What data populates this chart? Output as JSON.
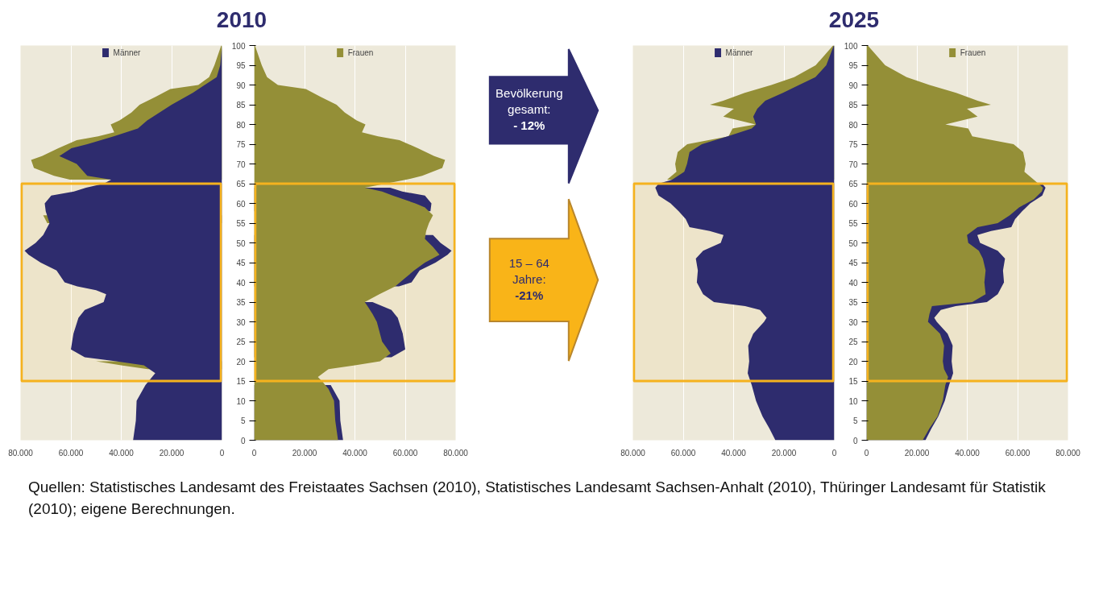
{
  "chart_data": [
    {
      "type": "area",
      "orientation": "horizontal",
      "title": "2010",
      "tick_labels": "x",
      "xlim": [
        80000,
        0
      ],
      "xticks": [
        0,
        {
          "value": 20000,
          "label": "20.000"
        },
        {
          "value": 40000,
          "label": "40.000"
        },
        {
          "value": 60000,
          "label": "60.000"
        },
        {
          "value": 80000,
          "label": "80.000"
        }
      ],
      "ylim": [
        0,
        100
      ],
      "grid": "x",
      "legend": "top",
      "bands": [
        {
          "axis": "y",
          "from": 15,
          "to": 65,
          "color": "#f5b21e"
        }
      ],
      "series": [
        {
          "color": "#948f37",
          "x": [
            18,
            19,
            20,
            22,
            25,
            30,
            32,
            34,
            35,
            37,
            39,
            41,
            43,
            45,
            47,
            49,
            51,
            53,
            55,
            57,
            59,
            60,
            62,
            63,
            64,
            66,
            67,
            69,
            71,
            72,
            74,
            76,
            77,
            78,
            80,
            81,
            83,
            85,
            87,
            89,
            90,
            92,
            95,
            100
          ],
          "values": [
            29500,
            40000,
            50000,
            null,
            null,
            null,
            null,
            null,
            null,
            null,
            null,
            null,
            null,
            null,
            null,
            null,
            null,
            null,
            69400,
            71000,
            null,
            null,
            null,
            null,
            null,
            60400,
            66700,
            74700,
            75800,
            71500,
            65000,
            57700,
            49200,
            42800,
            44200,
            40700,
            36000,
            32700,
            26400,
            20500,
            9400,
            5100,
            3000,
            300
          ]
        },
        {
          "name": "Männer",
          "color": "#2e2c6e",
          "x": [
            0,
            5,
            10,
            14,
            17,
            19,
            20,
            21,
            23,
            27,
            31,
            33,
            35,
            37,
            38,
            39,
            40,
            43,
            45,
            47,
            48,
            50,
            52,
            55,
            58,
            60,
            62,
            63,
            64,
            65,
            66,
            67,
            70,
            72,
            74,
            75,
            77,
            79,
            81,
            85,
            88,
            90,
            92,
            95,
            100
          ],
          "values": [
            35300,
            34200,
            33900,
            30400,
            26500,
            31000,
            42000,
            54500,
            60000,
            59000,
            57000,
            54500,
            47000,
            46000,
            50000,
            57500,
            62500,
            65700,
            72000,
            76800,
            78400,
            74000,
            71000,
            68500,
            70000,
            70400,
            67800,
            58800,
            54000,
            47000,
            44000,
            53500,
            57700,
            64600,
            59800,
            53500,
            43000,
            33400,
            29700,
            20000,
            11600,
            6900,
            2100,
            700,
            0
          ]
        }
      ]
    },
    {
      "type": "area",
      "orientation": "horizontal",
      "xlim": [
        0,
        80000
      ],
      "xticks": [
        0,
        {
          "value": 20000,
          "label": "20.000"
        },
        {
          "value": 40000,
          "label": "40.000"
        },
        {
          "value": 60000,
          "label": "60.000"
        },
        {
          "value": 80000,
          "label": "80.000"
        }
      ],
      "ylim": [
        0,
        100
      ],
      "yticks": [
        0,
        5,
        10,
        15,
        20,
        25,
        30,
        35,
        40,
        45,
        50,
        55,
        60,
        65,
        70,
        75,
        80,
        85,
        90,
        95,
        100
      ],
      "grid": "x",
      "legend": "top",
      "bands": [
        {
          "axis": "y",
          "from": 15,
          "to": 65,
          "color": "#f5b21e"
        }
      ],
      "annotations": [
        "Bevölkerung\ngesamt:\n- 12%",
        "15 – 64\nJahre:\n-21%"
      ],
      "series": [
        {
          "color": "#2e2c6e",
          "x": [
            0,
            5,
            10,
            14,
            17,
            19,
            20,
            21,
            23,
            27,
            31,
            33,
            35,
            37,
            38,
            39,
            40,
            43,
            45,
            47,
            48,
            50,
            52,
            55,
            58,
            60,
            62,
            63,
            64
          ],
          "values": [
            35300,
            34200,
            33900,
            30400,
            null,
            null,
            null,
            54500,
            60000,
            59000,
            57000,
            54500,
            47000,
            null,
            null,
            57500,
            62500,
            65700,
            72000,
            76800,
            78400,
            74000,
            71000,
            null,
            70000,
            70400,
            67800,
            58800,
            54000
          ]
        },
        {
          "name": "Frauen",
          "color": "#948f37",
          "x": [
            0,
            5,
            10,
            13,
            15,
            16,
            18,
            19,
            20,
            22,
            25,
            30,
            32,
            34,
            35,
            37,
            39,
            41,
            43,
            45,
            47,
            49,
            51,
            53,
            55,
            57,
            59,
            60,
            62,
            63,
            64,
            66,
            67,
            69,
            71,
            72,
            74,
            76,
            77,
            78,
            80,
            81,
            83,
            85,
            87,
            89,
            90,
            92,
            95,
            100
          ],
          "values": [
            33300,
            32200,
            31700,
            29500,
            26900,
            25300,
            29500,
            40000,
            50000,
            54200,
            50800,
            48700,
            47000,
            45000,
            43900,
            49700,
            56000,
            59800,
            63500,
            67800,
            73600,
            71000,
            67800,
            68300,
            69400,
            71000,
            67800,
            64000,
            55000,
            50800,
            43900,
            60400,
            66700,
            74700,
            75800,
            71500,
            65000,
            57700,
            49200,
            42800,
            44200,
            40700,
            36000,
            32700,
            26400,
            20500,
            9400,
            5100,
            3000,
            300
          ]
        }
      ]
    },
    {
      "type": "area",
      "orientation": "horizontal",
      "title": "2025",
      "tick_labels": "x",
      "xlim": [
        80000,
        0
      ],
      "xticks": [
        0,
        {
          "value": 20000,
          "label": "20.000"
        },
        {
          "value": 40000,
          "label": "40.000"
        },
        {
          "value": 60000,
          "label": "60.000"
        },
        {
          "value": 80000,
          "label": "80.000"
        }
      ],
      "ylim": [
        0,
        100
      ],
      "grid": "x",
      "legend": "top",
      "bands": [
        {
          "axis": "y",
          "from": 15,
          "to": 65,
          "color": "#f5b21e"
        }
      ],
      "series": [
        {
          "color": "#948f37",
          "x": [
            66,
            68,
            70,
            73,
            75,
            77,
            79,
            80,
            82,
            84,
            85,
            86,
            88,
            90,
            92,
            95,
            100
          ],
          "values": [
            66400,
            62700,
            63200,
            62200,
            58400,
            42000,
            40400,
            31300,
            44100,
            39900,
            49400,
            44100,
            35600,
            25000,
            15900,
            7400,
            500
          ]
        },
        {
          "name": "Männer",
          "color": "#2e2c6e",
          "x": [
            0,
            3,
            6,
            10,
            14,
            17,
            20,
            24,
            27,
            30,
            31,
            33,
            34,
            35,
            37,
            40,
            43,
            46,
            48,
            50,
            52,
            53,
            54,
            56,
            58,
            60,
            62,
            64,
            65,
            66,
            68,
            70,
            73,
            75,
            77,
            79,
            80,
            82,
            84,
            86,
            88,
            90,
            92,
            95,
            100
          ],
          "values": [
            23400,
            25800,
            28500,
            31100,
            32800,
            34400,
            33800,
            34200,
            32200,
            27900,
            26900,
            29500,
            35400,
            47800,
            52100,
            54600,
            54200,
            55000,
            52100,
            45100,
            44000,
            49500,
            57500,
            59000,
            61800,
            65000,
            69800,
            71100,
            69800,
            64400,
            59600,
            58500,
            57500,
            52600,
            42400,
            32800,
            31100,
            32200,
            30600,
            27400,
            20400,
            14000,
            7500,
            3200,
            200
          ]
        }
      ]
    },
    {
      "type": "area",
      "orientation": "horizontal",
      "xlim": [
        0,
        80000
      ],
      "xticks": [
        0,
        {
          "value": 20000,
          "label": "20.000"
        },
        {
          "value": 40000,
          "label": "40.000"
        },
        {
          "value": 60000,
          "label": "60.000"
        },
        {
          "value": 80000,
          "label": "80.000"
        }
      ],
      "ylim": [
        0,
        100
      ],
      "yticks": [
        0,
        5,
        10,
        15,
        20,
        25,
        30,
        35,
        40,
        45,
        50,
        55,
        60,
        65,
        70,
        75,
        80,
        85,
        90,
        95,
        100
      ],
      "grid": "x",
      "legend": "top",
      "bands": [
        {
          "axis": "y",
          "from": 15,
          "to": 65,
          "color": "#f5b21e"
        }
      ],
      "annotations": [
        "Quellen: Statistisches Landesamt des Freistaates Sachsen (2010), Statistisches Landesamt Sachsen-Anhalt (2010), Thüringer Landesamt für Statistik (2010); eigene Berechnungen."
      ],
      "series": [
        {
          "color": "#2e2c6e",
          "x": [
            0,
            3,
            6,
            10,
            14,
            17,
            20,
            24,
            27,
            30,
            31,
            33,
            34,
            35,
            37,
            40,
            43,
            46,
            48,
            50,
            52,
            53,
            54,
            56,
            58,
            60,
            62,
            64,
            65
          ],
          "values": [
            23400,
            25800,
            28500,
            31100,
            32800,
            34400,
            33800,
            34200,
            32200,
            27900,
            26900,
            29500,
            35400,
            47800,
            52100,
            54600,
            54200,
            55000,
            52100,
            45100,
            44000,
            49500,
            57500,
            59000,
            61800,
            65000,
            69800,
            71100,
            69800
          ]
        },
        {
          "name": "Frauen",
          "color": "#948f37",
          "x": [
            0,
            3,
            6,
            10,
            14,
            16,
            18,
            20,
            24,
            27,
            30,
            32,
            34,
            35,
            37,
            40,
            43,
            46,
            48,
            50,
            52,
            54,
            55,
            57,
            59,
            61,
            63,
            64,
            66,
            68,
            70,
            73,
            75,
            77,
            79,
            80,
            82,
            84,
            85,
            86,
            88,
            90,
            92,
            95,
            100
          ],
          "values": [
            22300,
            25000,
            28200,
            30300,
            31300,
            32400,
            30800,
            30300,
            30800,
            29200,
            24400,
            25000,
            26000,
            42000,
            47300,
            46800,
            47300,
            46200,
            44600,
            40400,
            39900,
            44100,
            52100,
            56900,
            60600,
            66400,
            69600,
            70100,
            66400,
            62700,
            63200,
            62200,
            58400,
            42000,
            40400,
            31300,
            44100,
            39900,
            49400,
            44100,
            35600,
            25000,
            15900,
            7400,
            500
          ]
        }
      ]
    }
  ]
}
